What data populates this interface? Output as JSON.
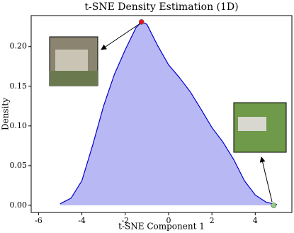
{
  "chart_data": {
    "type": "area",
    "title": "t-SNE Density Estimation (1D)",
    "xlabel": "t-SNE Component 1",
    "ylabel": "Density",
    "x": [
      -5.0,
      -4.5,
      -4.0,
      -3.5,
      -3.0,
      -2.5,
      -2.0,
      -1.5,
      -1.25,
      -1.0,
      -0.5,
      0.0,
      0.5,
      1.0,
      1.5,
      2.0,
      2.5,
      3.0,
      3.5,
      4.0,
      4.5,
      5.0
    ],
    "series": [
      {
        "color": "#0000cc",
        "fill": "#b8b8f4",
        "values": [
          0.002,
          0.009,
          0.031,
          0.076,
          0.125,
          0.165,
          0.196,
          0.224,
          0.231,
          0.228,
          0.201,
          0.177,
          0.161,
          0.143,
          0.121,
          0.098,
          0.08,
          0.058,
          0.031,
          0.013,
          0.004,
          0.001
        ]
      }
    ],
    "points": [
      {
        "x": -1.25,
        "y": 0.231,
        "color": "#e8141e"
      },
      {
        "x": 4.85,
        "y": 0.0,
        "color": "#90d080"
      }
    ],
    "xlim": [
      -6.34,
      5.69
    ],
    "ylim": [
      -0.009,
      0.239
    ],
    "xticks": [
      -6,
      -4,
      -2,
      0,
      2,
      4
    ],
    "yticks": [
      {
        "value": 0,
        "label": "0.00"
      },
      0.05,
      {
        "value": 0.1,
        "label": "0.10"
      },
      0.15,
      {
        "value": 0.2,
        "label": "0.20"
      }
    ]
  }
}
